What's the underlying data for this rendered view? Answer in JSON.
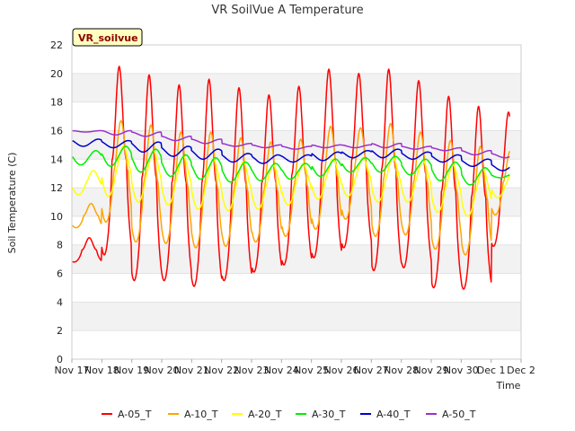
{
  "chart_data": {
    "type": "line",
    "title": "VR SoilVue A Temperature",
    "xlabel": "Time",
    "ylabel": "Soil Temperature (C)",
    "badge": "VR_soilvue",
    "ylim": [
      0,
      22
    ],
    "yticks": [
      0,
      2,
      4,
      6,
      8,
      10,
      12,
      14,
      16,
      18,
      20,
      22
    ],
    "xlim": [
      "2023-11-17",
      "2023-12-02"
    ],
    "xtick_labels": [
      "Nov 17",
      "Nov 18",
      "Nov 19",
      "Nov 20",
      "Nov 21",
      "Nov 22",
      "Nov 23",
      "Nov 24",
      "Nov 25",
      "Nov 26",
      "Nov 27",
      "Nov 28",
      "Nov 29",
      "Nov 30",
      "Dec 1",
      "Dec 2"
    ],
    "grid": true,
    "legend_position": "bottom",
    "x": [
      "2023-11-17",
      "2023-11-18",
      "2023-11-19",
      "2023-11-20",
      "2023-11-21",
      "2023-11-22",
      "2023-11-23",
      "2023-11-24",
      "2023-11-25",
      "2023-11-26",
      "2023-11-27",
      "2023-11-28",
      "2023-11-29",
      "2023-11-30",
      "2023-12-01"
    ],
    "series": [
      {
        "name": "A-05_T",
        "color": "#ff0000",
        "daily_max": [
          8.5,
          20.5,
          19.9,
          19.2,
          19.6,
          19.0,
          18.5,
          19.1,
          20.3,
          20.0,
          20.3,
          19.5,
          18.4,
          17.7,
          17.3
        ],
        "daily_min": [
          6.8,
          7.3,
          5.5,
          5.5,
          5.1,
          5.5,
          6.1,
          6.6,
          7.1,
          7.8,
          6.2,
          6.4,
          5.0,
          4.9,
          7.9
        ]
      },
      {
        "name": "A-10_T",
        "color": "#ffa500",
        "daily_max": [
          10.9,
          16.7,
          16.4,
          15.9,
          15.9,
          15.5,
          15.2,
          15.4,
          16.3,
          16.2,
          16.5,
          15.9,
          15.3,
          14.9,
          14.6
        ],
        "daily_min": [
          9.2,
          9.6,
          8.2,
          8.1,
          7.8,
          7.9,
          8.2,
          8.6,
          9.1,
          9.8,
          8.6,
          8.7,
          7.7,
          7.3,
          10.1
        ]
      },
      {
        "name": "A-20_T",
        "color": "#ffff00",
        "daily_max": [
          13.2,
          14.9,
          14.6,
          14.2,
          14.0,
          13.8,
          13.6,
          13.7,
          14.0,
          14.1,
          14.1,
          13.9,
          13.6,
          13.3,
          13.1
        ],
        "daily_min": [
          11.5,
          11.4,
          11.0,
          10.8,
          10.5,
          10.4,
          10.5,
          10.8,
          11.2,
          11.4,
          11.0,
          11.0,
          10.3,
          10.0,
          11.3
        ]
      },
      {
        "name": "A-30_T",
        "color": "#00ee00",
        "daily_max": [
          14.6,
          14.9,
          14.7,
          14.3,
          14.1,
          13.8,
          13.7,
          13.7,
          14.0,
          14.1,
          14.2,
          14.0,
          13.8,
          13.4,
          13.0
        ],
        "daily_min": [
          13.6,
          13.5,
          13.1,
          12.8,
          12.6,
          12.4,
          12.5,
          12.6,
          12.8,
          13.1,
          13.1,
          12.9,
          12.5,
          12.2,
          12.7
        ]
      },
      {
        "name": "A-40_T",
        "color": "#0000cc",
        "daily_max": [
          15.4,
          15.3,
          15.2,
          14.9,
          14.7,
          14.4,
          14.3,
          14.3,
          14.5,
          14.6,
          14.7,
          14.5,
          14.3,
          14.0,
          13.7
        ],
        "daily_min": [
          14.9,
          14.8,
          14.5,
          14.2,
          14.0,
          13.8,
          13.7,
          13.8,
          13.9,
          14.1,
          14.1,
          14.0,
          13.8,
          13.5,
          13.2
        ]
      },
      {
        "name": "A-50_T",
        "color": "#9932cc",
        "daily_max": [
          16.0,
          16.0,
          15.9,
          15.6,
          15.4,
          15.1,
          15.0,
          14.9,
          15.0,
          15.0,
          15.1,
          14.9,
          14.8,
          14.6,
          14.4
        ],
        "daily_min": [
          15.9,
          15.7,
          15.6,
          15.3,
          15.1,
          14.9,
          14.8,
          14.7,
          14.8,
          14.8,
          14.8,
          14.7,
          14.6,
          14.3,
          14.1
        ]
      }
    ]
  }
}
